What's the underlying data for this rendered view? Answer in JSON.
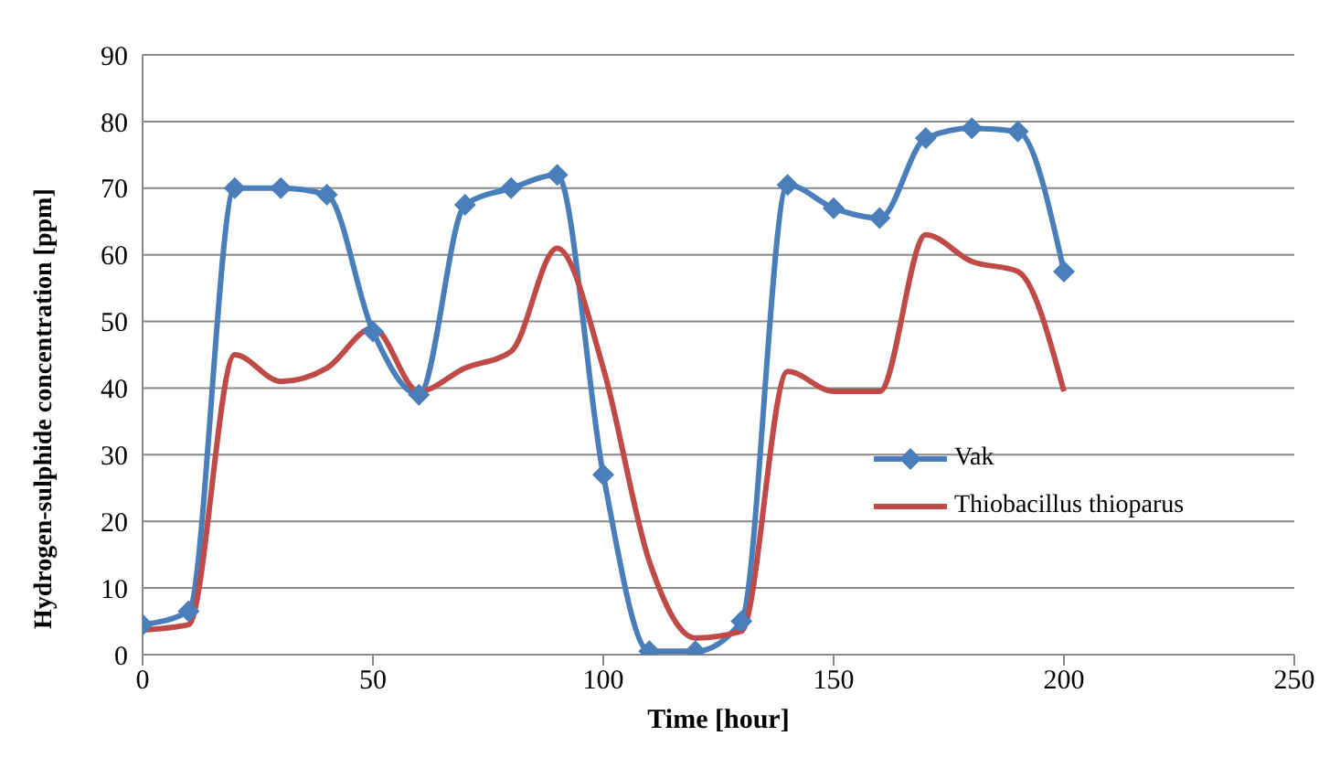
{
  "chart_data": {
    "type": "line",
    "xlabel": "Time [hour]",
    "ylabel": "Hydrogen-sulphide concentration [ppm]",
    "x": [
      0,
      10,
      20,
      30,
      40,
      50,
      60,
      70,
      80,
      90,
      100,
      110,
      120,
      130,
      140,
      150,
      160,
      170,
      180,
      190,
      200
    ],
    "series": [
      {
        "name": "Vak",
        "color": "#4a7ebb",
        "marker": "diamond",
        "values": [
          4.5,
          6.5,
          70,
          70,
          69,
          48.5,
          39,
          67.5,
          70,
          72,
          27,
          0.5,
          0.5,
          5,
          70.5,
          67,
          65.5,
          77.5,
          79,
          78.5,
          57.5
        ]
      },
      {
        "name": "Thiobacillus thioparus",
        "color": "#be4b48",
        "marker": "none",
        "values": [
          3.7,
          4.5,
          45,
          41,
          43,
          49,
          39.5,
          43,
          45.5,
          61,
          43,
          14,
          2.5,
          3.5,
          42.5,
          39.5,
          39.5,
          63,
          59,
          57.5,
          39.5
        ]
      }
    ],
    "xlim": [
      0,
      250
    ],
    "xticks": [
      0,
      50,
      100,
      150,
      200,
      250
    ],
    "ylim": [
      0,
      90
    ],
    "yticks": [
      0,
      10,
      20,
      30,
      40,
      50,
      60,
      70,
      80,
      90
    ],
    "grid": "y",
    "legend": "bottom right",
    "line_style": "solid"
  }
}
